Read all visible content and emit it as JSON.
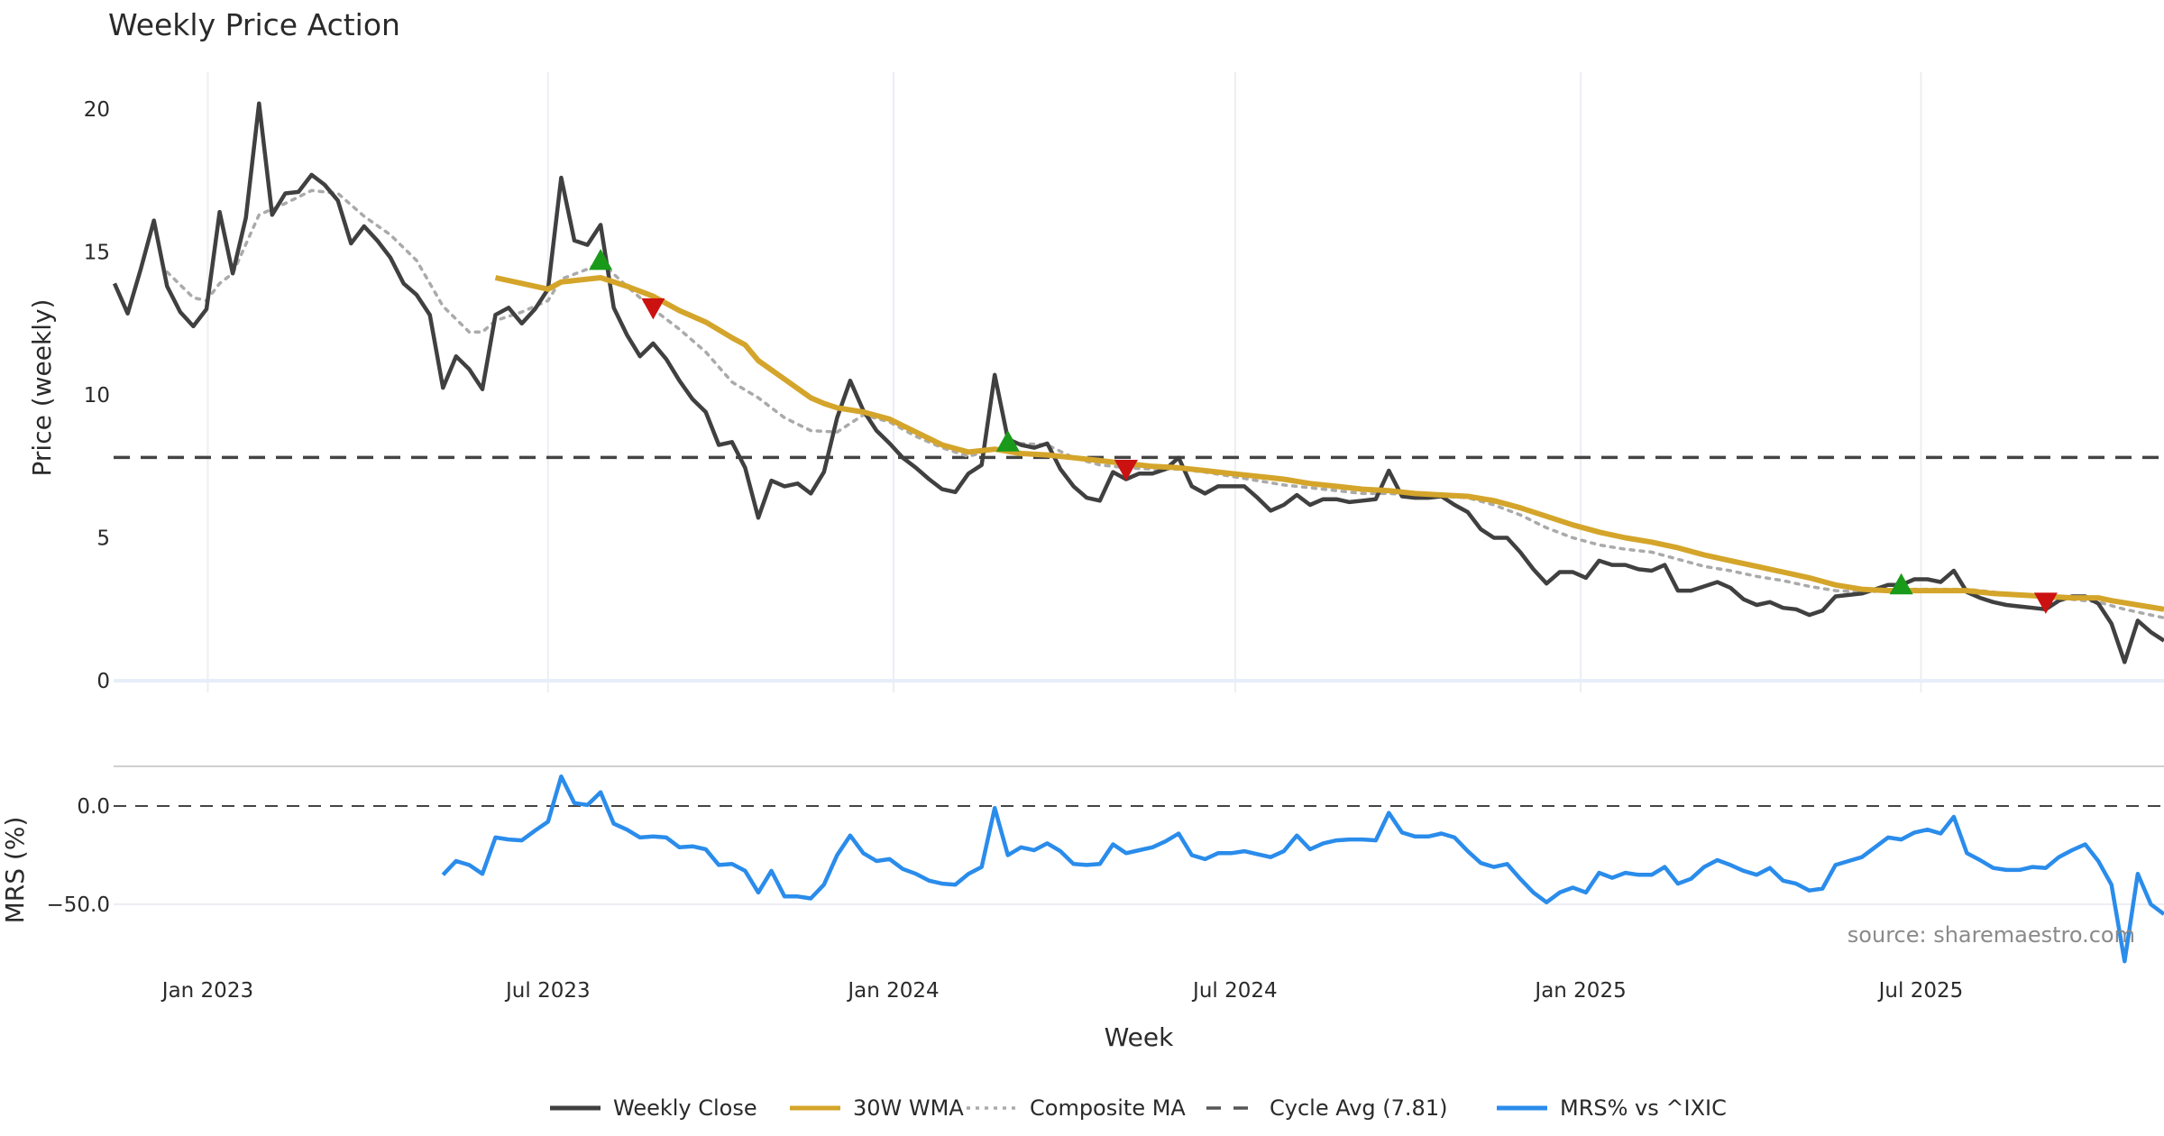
{
  "chart_data": {
    "type": "line",
    "title": "Weekly Price Action",
    "xlabel": "Week",
    "source": "source: sharemaestro.com",
    "x_unit": "week index (weekly bars)",
    "x_ticks": [
      {
        "label": "Jan 2023",
        "week": 7.1
      },
      {
        "label": "Jul 2023",
        "week": 33.0
      },
      {
        "label": "Jan 2024",
        "week": 59.3
      },
      {
        "label": "Jul 2024",
        "week": 85.3
      },
      {
        "label": "Jan 2025",
        "week": 111.6
      },
      {
        "label": "Jul 2025",
        "week": 137.5
      }
    ],
    "price_panel": {
      "ylabel": "Price (weekly)",
      "ylim": [
        0,
        21.5
      ],
      "y_ticks": [
        {
          "label": "0",
          "value": 0
        },
        {
          "label": "5",
          "value": 5
        },
        {
          "label": "10",
          "value": 10
        },
        {
          "label": "15",
          "value": 15
        },
        {
          "label": "20",
          "value": 20
        }
      ],
      "cycle_avg": 7.81,
      "series": [
        {
          "name": "Weekly Close",
          "color": "#404040",
          "start_week": 0,
          "values": [
            13.9,
            12.85,
            14.4,
            16.1,
            13.8,
            12.9,
            12.4,
            13.0,
            16.4,
            14.25,
            16.2,
            20.2,
            16.3,
            17.05,
            17.1,
            17.7,
            17.35,
            16.8,
            15.3,
            15.9,
            15.4,
            14.8,
            13.9,
            13.5,
            12.8,
            10.25,
            11.35,
            10.9,
            10.2,
            12.8,
            13.05,
            12.5,
            13.0,
            13.7,
            17.6,
            15.4,
            15.25,
            15.95,
            13.05,
            12.1,
            11.35,
            11.8,
            11.25,
            10.5,
            9.85,
            9.4,
            8.25,
            8.35,
            7.45,
            5.7,
            7.0,
            6.8,
            6.9,
            6.55,
            7.3,
            9.2,
            10.5,
            9.45,
            8.75,
            8.3,
            7.8,
            7.45,
            7.05,
            6.7,
            6.6,
            7.25,
            7.55,
            10.7,
            8.45,
            8.25,
            8.15,
            8.3,
            7.4,
            6.8,
            6.4,
            6.3,
            7.3,
            7.05,
            7.25,
            7.25,
            7.4,
            7.8,
            6.8,
            6.55,
            6.8,
            6.8,
            6.8,
            6.4,
            5.95,
            6.15,
            6.5,
            6.15,
            6.35,
            6.35,
            6.25,
            6.3,
            6.35,
            7.35,
            6.45,
            6.4,
            6.4,
            6.45,
            6.15,
            5.9,
            5.3,
            5.0,
            5.0,
            4.5,
            3.9,
            3.4,
            3.8,
            3.8,
            3.6,
            4.2,
            4.05,
            4.05,
            3.9,
            3.85,
            4.05,
            3.15,
            3.15,
            3.3,
            3.45,
            3.25,
            2.85,
            2.65,
            2.75,
            2.55,
            2.5,
            2.3,
            2.45,
            2.95,
            3.0,
            3.05,
            3.2,
            3.35,
            3.35,
            3.55,
            3.55,
            3.45,
            3.85,
            3.1,
            2.9,
            2.75,
            2.65,
            2.6,
            2.55,
            2.5,
            2.8,
            2.95,
            2.95,
            2.7,
            2.0,
            0.65,
            2.1,
            1.7,
            1.4
          ]
        },
        {
          "name": "30W WMA",
          "color": "#D4A52A",
          "points": [
            [
              29,
              14.1
            ],
            [
              33,
              13.7
            ],
            [
              34,
              13.95
            ],
            [
              37,
              14.1
            ],
            [
              39,
              13.8
            ],
            [
              41,
              13.45
            ],
            [
              43,
              12.95
            ],
            [
              45,
              12.55
            ],
            [
              47,
              12.0
            ],
            [
              48,
              11.75
            ],
            [
              49,
              11.2
            ],
            [
              51,
              10.55
            ],
            [
              53,
              9.9
            ],
            [
              54,
              9.7
            ],
            [
              55,
              9.55
            ],
            [
              57,
              9.4
            ],
            [
              59,
              9.15
            ],
            [
              61,
              8.7
            ],
            [
              63,
              8.25
            ],
            [
              65,
              8.0
            ],
            [
              67,
              8.1
            ],
            [
              69,
              7.95
            ],
            [
              71,
              7.9
            ],
            [
              73,
              7.8
            ],
            [
              75,
              7.7
            ],
            [
              77,
              7.6
            ],
            [
              79,
              7.5
            ],
            [
              81,
              7.45
            ],
            [
              83,
              7.35
            ],
            [
              85,
              7.25
            ],
            [
              87,
              7.15
            ],
            [
              89,
              7.05
            ],
            [
              91,
              6.9
            ],
            [
              93,
              6.8
            ],
            [
              95,
              6.7
            ],
            [
              97,
              6.65
            ],
            [
              99,
              6.55
            ],
            [
              101,
              6.5
            ],
            [
              103,
              6.45
            ],
            [
              105,
              6.3
            ],
            [
              107,
              6.05
            ],
            [
              109,
              5.75
            ],
            [
              111,
              5.45
            ],
            [
              113,
              5.2
            ],
            [
              115,
              5.0
            ],
            [
              117,
              4.85
            ],
            [
              119,
              4.65
            ],
            [
              121,
              4.4
            ],
            [
              123,
              4.2
            ],
            [
              125,
              4.0
            ],
            [
              127,
              3.8
            ],
            [
              129,
              3.6
            ],
            [
              131,
              3.35
            ],
            [
              133,
              3.2
            ],
            [
              135,
              3.15
            ],
            [
              137,
              3.15
            ],
            [
              139,
              3.15
            ],
            [
              141,
              3.15
            ],
            [
              143,
              3.05
            ],
            [
              145,
              3.0
            ],
            [
              147,
              2.95
            ],
            [
              149,
              2.9
            ],
            [
              151,
              2.9
            ],
            [
              152,
              2.8
            ],
            [
              154,
              2.65
            ],
            [
              156,
              2.5
            ]
          ]
        },
        {
          "name": "Composite MA",
          "color": "#AAAAAA",
          "points": [
            [
              4,
              14.3
            ],
            [
              6,
              13.4
            ],
            [
              7,
              13.3
            ],
            [
              8,
              13.9
            ],
            [
              9,
              14.25
            ],
            [
              11,
              16.3
            ],
            [
              13,
              16.7
            ],
            [
              15,
              17.15
            ],
            [
              17,
              17.05
            ],
            [
              19,
              16.25
            ],
            [
              21,
              15.6
            ],
            [
              23,
              14.7
            ],
            [
              25,
              13.1
            ],
            [
              27,
              12.2
            ],
            [
              28,
              12.2
            ],
            [
              29,
              12.6
            ],
            [
              31,
              12.9
            ],
            [
              33,
              13.3
            ],
            [
              34,
              14.05
            ],
            [
              36,
              14.4
            ],
            [
              37,
              14.65
            ],
            [
              39,
              13.8
            ],
            [
              41,
              13.0
            ],
            [
              43,
              12.3
            ],
            [
              45,
              11.5
            ],
            [
              47,
              10.45
            ],
            [
              49,
              9.9
            ],
            [
              51,
              9.2
            ],
            [
              53,
              8.75
            ],
            [
              55,
              8.7
            ],
            [
              57,
              9.3
            ],
            [
              59,
              9.05
            ],
            [
              61,
              8.55
            ],
            [
              63,
              8.15
            ],
            [
              65,
              7.85
            ],
            [
              67,
              8.1
            ],
            [
              69,
              8.3
            ],
            [
              71,
              8.25
            ],
            [
              73,
              7.8
            ],
            [
              75,
              7.55
            ],
            [
              77,
              7.45
            ],
            [
              79,
              7.4
            ],
            [
              81,
              7.4
            ],
            [
              83,
              7.3
            ],
            [
              85,
              7.15
            ],
            [
              87,
              7.0
            ],
            [
              89,
              6.85
            ],
            [
              91,
              6.75
            ],
            [
              93,
              6.65
            ],
            [
              95,
              6.55
            ],
            [
              97,
              6.55
            ],
            [
              99,
              6.5
            ],
            [
              101,
              6.45
            ],
            [
              103,
              6.4
            ],
            [
              105,
              6.15
            ],
            [
              107,
              5.8
            ],
            [
              109,
              5.35
            ],
            [
              111,
              5.0
            ],
            [
              113,
              4.75
            ],
            [
              115,
              4.6
            ],
            [
              117,
              4.5
            ],
            [
              119,
              4.25
            ],
            [
              121,
              4.0
            ],
            [
              123,
              3.85
            ],
            [
              125,
              3.65
            ],
            [
              127,
              3.5
            ],
            [
              129,
              3.3
            ],
            [
              131,
              3.15
            ],
            [
              133,
              3.1
            ],
            [
              135,
              3.15
            ],
            [
              137,
              3.2
            ],
            [
              139,
              3.2
            ],
            [
              141,
              3.2
            ],
            [
              143,
              3.1
            ],
            [
              145,
              3.0
            ],
            [
              147,
              2.9
            ],
            [
              149,
              2.85
            ],
            [
              151,
              2.75
            ],
            [
              153,
              2.5
            ],
            [
              156,
              2.2
            ]
          ]
        }
      ],
      "signals": [
        {
          "type": "buy",
          "week": 37,
          "value": 14.7,
          "color": "#1a9a1a"
        },
        {
          "type": "sell",
          "week": 41,
          "value": 13.05,
          "color": "#cc1111"
        },
        {
          "type": "buy",
          "week": 68,
          "value": 8.35,
          "color": "#1a9a1a"
        },
        {
          "type": "sell",
          "week": 77,
          "value": 7.4,
          "color": "#cc1111"
        },
        {
          "type": "buy",
          "week": 136,
          "value": 3.35,
          "color": "#1a9a1a"
        },
        {
          "type": "sell",
          "week": 147,
          "value": 2.75,
          "color": "#cc1111"
        }
      ]
    },
    "mrs_panel": {
      "ylabel": "MRS (%)",
      "ylim": [
        -82,
        25
      ],
      "y_ticks": [
        {
          "label": "0.0",
          "value": 0
        },
        {
          "label": "−50.0",
          "value": -50
        }
      ],
      "series": {
        "name": "MRS% vs ^IXIC",
        "color": "#2A8CEB",
        "start_week": 25,
        "values": [
          -35,
          -28,
          -30,
          -34.5,
          -16,
          -17,
          -17.5,
          -12.5,
          -8,
          15,
          1.5,
          0.5,
          7,
          -9,
          -12,
          -16,
          -15.5,
          -16,
          -21,
          -20.5,
          -22,
          -30,
          -29.5,
          -33,
          -44,
          -33,
          -46,
          -46,
          -47,
          -40,
          -25,
          -15,
          -24,
          -28,
          -27,
          -32,
          -34.5,
          -38,
          -39.5,
          -40,
          -34.5,
          -31,
          -1,
          -25,
          -21,
          -22.5,
          -19,
          -23,
          -29.5,
          -30,
          -29.5,
          -19.5,
          -24,
          -22.5,
          -21,
          -18,
          -14,
          -25,
          -27,
          -24,
          -24,
          -23,
          -24.5,
          -26,
          -23,
          -15,
          -22,
          -19,
          -17.5,
          -17,
          -17,
          -17.5,
          -3.5,
          -13.5,
          -15.5,
          -15.5,
          -14,
          -16,
          -23,
          -29,
          -31,
          -29.5,
          -37,
          -44,
          -49,
          -44,
          -41.5,
          -44,
          -34,
          -36.5,
          -34,
          -35,
          -35,
          -31,
          -39.5,
          -37,
          -31,
          -27.5,
          -30,
          -33,
          -35,
          -31.5,
          -38,
          -39.5,
          -43,
          -42,
          -30,
          -28,
          -26,
          -21,
          -16,
          -17,
          -13.5,
          -12,
          -14,
          -5.5,
          -24,
          -27.5,
          -31.5,
          -32.5,
          -32.5,
          -31,
          -31.5,
          -26,
          -22.5,
          -19.5,
          -28,
          -40,
          -79,
          -34.5,
          -50,
          -55
        ]
      }
    },
    "legend": {
      "placement": "bottom-center",
      "items": [
        {
          "label": "Weekly Close",
          "color": "#404040",
          "style": "solid"
        },
        {
          "label": "30W WMA",
          "color": "#D4A52A",
          "style": "solid"
        },
        {
          "label": "Composite MA",
          "color": "#AAAAAA",
          "style": "dotted"
        },
        {
          "label": "Cycle Avg (7.81)",
          "color": "#555555",
          "style": "dashed"
        },
        {
          "label": "MRS% vs ^IXIC",
          "color": "#2A8CEB",
          "style": "solid"
        }
      ]
    }
  }
}
